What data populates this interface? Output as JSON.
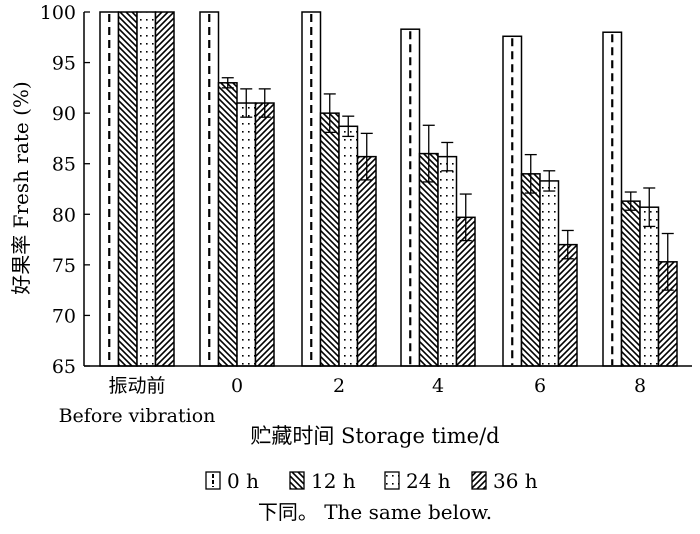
{
  "chart_data": {
    "type": "bar",
    "categories": [
      "振动前",
      "0",
      "2",
      "4",
      "6",
      "8"
    ],
    "category_sublabels": [
      "Before vibration",
      "",
      "",
      "",
      "",
      ""
    ],
    "xlabel": "贮藏时间  Storage time/d",
    "ylabel": "好果率  Fresh rate (%)",
    "ylim": [
      65,
      100
    ],
    "yticks": [
      65,
      70,
      75,
      80,
      85,
      90,
      95,
      100
    ],
    "grid": false,
    "legend_position": "bottom",
    "series": [
      {
        "name": "0 h",
        "pattern": "dashed-center",
        "values": [
          100,
          100,
          100,
          98.3,
          97.6,
          98.0
        ],
        "errors": [
          0,
          0,
          0,
          0,
          0,
          0
        ]
      },
      {
        "name": "12 h",
        "pattern": "backslash-hatch",
        "values": [
          100,
          93.0,
          90.0,
          86.0,
          84.0,
          81.3
        ],
        "errors": [
          0,
          0.5,
          1.9,
          2.8,
          1.9,
          0.9
        ]
      },
      {
        "name": "24 h",
        "pattern": "dots",
        "values": [
          100,
          91.0,
          88.7,
          85.7,
          83.3,
          80.7
        ],
        "errors": [
          0,
          1.4,
          1.0,
          1.4,
          1.0,
          1.9
        ]
      },
      {
        "name": "36 h",
        "pattern": "slash-hatch",
        "values": [
          100,
          91.0,
          85.7,
          79.7,
          77.0,
          75.3
        ],
        "errors": [
          0,
          1.4,
          2.3,
          2.3,
          1.4,
          2.8
        ]
      }
    ],
    "note": "下同。  The same below."
  },
  "colors": {
    "stroke": "#000000",
    "fill": "#ffffff"
  }
}
